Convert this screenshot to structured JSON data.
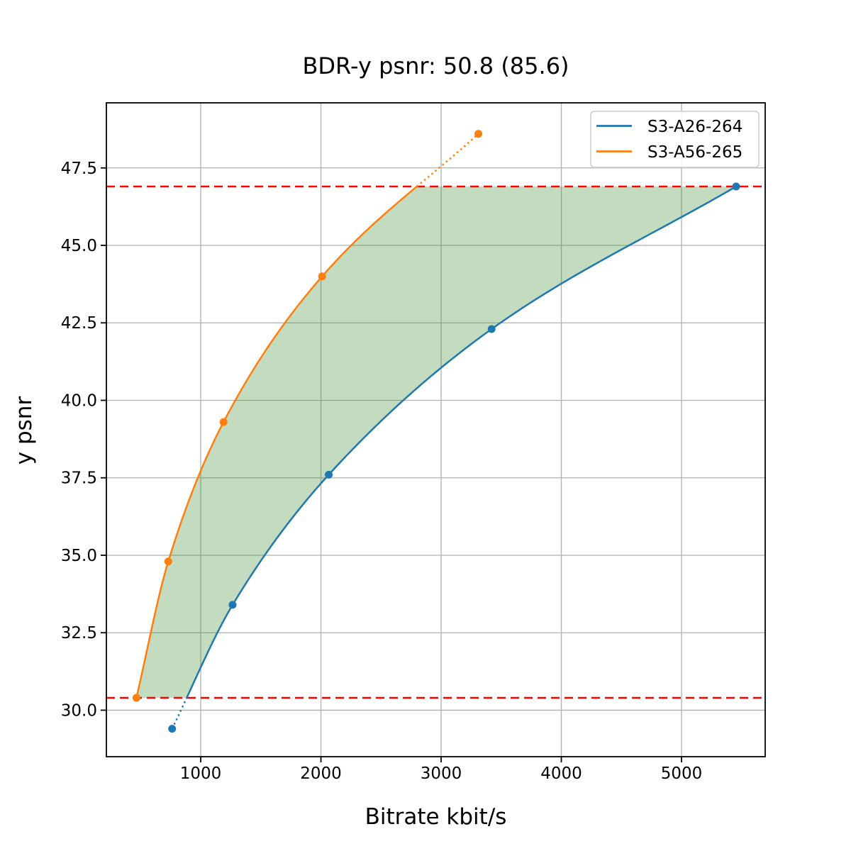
{
  "figure": {
    "background": "#ffffff"
  },
  "chart_data": {
    "type": "line",
    "title": "BDR-y psnr: 50.8 (85.6)",
    "xlabel": "Bitrate kbit/s",
    "ylabel": "y psnr",
    "xlim": [
      215,
      5696
    ],
    "ylim": [
      28.5,
      49.6
    ],
    "grid": true,
    "grid_color": "#b0b0b0",
    "x_ticks": {
      "values": [
        1000,
        2000,
        3000,
        4000,
        5000
      ],
      "labels": [
        "1000",
        "2000",
        "3000",
        "4000",
        "5000"
      ]
    },
    "y_ticks": {
      "values": [
        30.0,
        32.5,
        35.0,
        37.5,
        40.0,
        42.5,
        45.0,
        47.5
      ],
      "labels": [
        "30.0",
        "32.5",
        "35.0",
        "37.5",
        "40.0",
        "42.5",
        "45.0",
        "47.5"
      ]
    },
    "series": [
      {
        "name": "S3-A26-264",
        "color": "#1f77b4",
        "marker": "circle",
        "points": [
          [
            762,
            29.4
          ],
          [
            1265,
            33.4
          ],
          [
            2065,
            37.6
          ],
          [
            3420,
            42.3
          ],
          [
            5454,
            46.9
          ]
        ],
        "dotted_segment": "below-overlap"
      },
      {
        "name": "S3-A56-265",
        "color": "#ff7f0e",
        "marker": "circle",
        "points": [
          [
            465,
            30.4
          ],
          [
            730,
            34.8
          ],
          [
            1190,
            39.3
          ],
          [
            2010,
            44.0
          ],
          [
            3310,
            48.6
          ]
        ],
        "dotted_segment": "above-overlap"
      }
    ],
    "overlap_lines": {
      "color": "#ff0000",
      "style": "dashed",
      "upper": 46.9,
      "lower": 30.4
    },
    "shaded_region": {
      "color": "#378a2d",
      "opacity": 0.3
    },
    "legend": {
      "position": "upper right",
      "entries": [
        "S3-A26-264",
        "S3-A56-265"
      ]
    }
  }
}
